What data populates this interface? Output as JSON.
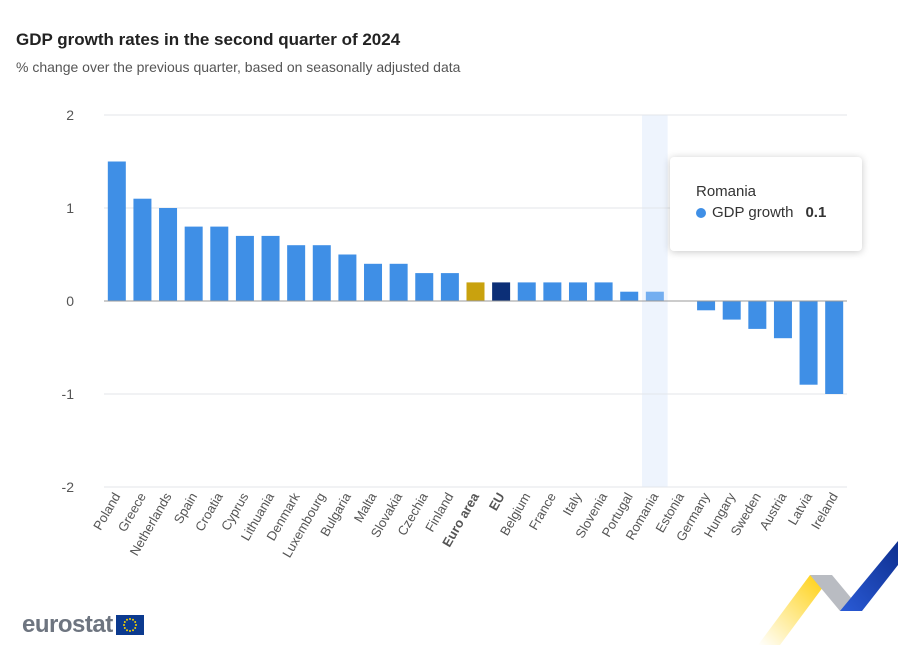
{
  "header": {
    "title": "GDP growth rates in the second quarter of 2024",
    "subtitle": "% change over the previous quarter, based on seasonally adjusted data"
  },
  "tooltip": {
    "country": "Romania",
    "series_label": "GDP growth",
    "value": "0.1"
  },
  "branding": {
    "logo_text": "eurostat"
  },
  "colors": {
    "bar": "#3f8fe6",
    "euro_area": "#c9a20e",
    "eu": "#0c2f77",
    "highlight_band": "#eef4fd",
    "grid": "#e3e6ea",
    "axis_line": "#999999",
    "tick_label": "#555555",
    "hovered_bar": "#73aef0"
  },
  "chart_data": {
    "type": "bar",
    "title": "GDP growth rates in the second quarter of 2024",
    "subtitle": "% change over the previous quarter, based on seasonally adjusted data",
    "categories": [
      "Poland",
      "Greece",
      "Netherlands",
      "Spain",
      "Croatia",
      "Cyprus",
      "Lithuania",
      "Denmark",
      "Luxembourg",
      "Bulgaria",
      "Malta",
      "Slovakia",
      "Czechia",
      "Finland",
      "Euro area",
      "EU",
      "Belgium",
      "France",
      "Italy",
      "Slovenia",
      "Portugal",
      "Romania",
      "Estonia",
      "Germany",
      "Hungary",
      "Sweden",
      "Austria",
      "Latvia",
      "Ireland"
    ],
    "series": [
      {
        "name": "GDP growth",
        "values": [
          1.5,
          1.1,
          1.0,
          0.8,
          0.8,
          0.7,
          0.7,
          0.6,
          0.6,
          0.5,
          0.4,
          0.4,
          0.3,
          0.3,
          0.2,
          0.2,
          0.2,
          0.2,
          0.2,
          0.2,
          0.1,
          0.1,
          0.0,
          -0.1,
          -0.2,
          -0.3,
          -0.4,
          -0.9,
          -1.0
        ]
      }
    ],
    "bold_categories": [
      "Euro area",
      "EU"
    ],
    "highlighted_category": "Romania",
    "ylim": [
      -2,
      2
    ],
    "yticks": [
      -2,
      -1,
      0,
      1,
      2
    ],
    "xlabel": "",
    "ylabel": "",
    "grid": true,
    "legend": false
  }
}
